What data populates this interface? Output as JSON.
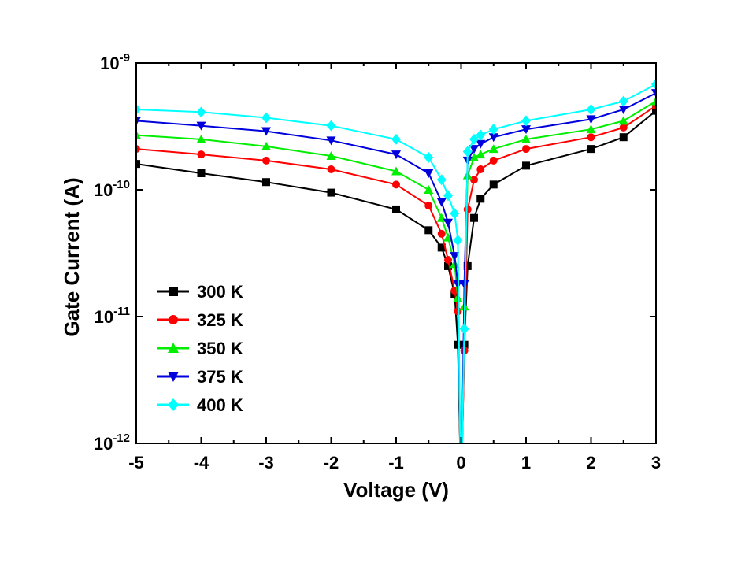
{
  "chart_data": {
    "type": "line",
    "xlabel": "Voltage (V)",
    "ylabel": "Gate Current (A)",
    "xlim": [
      -5,
      3
    ],
    "ylim": [
      1e-12,
      1e-09
    ],
    "yscale": "log",
    "x_ticks": [
      "-5",
      "-4",
      "-3",
      "-2",
      "-1",
      "0",
      "1",
      "2",
      "3"
    ],
    "y_ticks": [
      {
        "base": "10",
        "exp": "-12"
      },
      {
        "base": "10",
        "exp": "-11"
      },
      {
        "base": "10",
        "exp": "-10"
      },
      {
        "base": "10",
        "exp": "-9"
      }
    ],
    "legend_position": "lower-left",
    "series": [
      {
        "name": "300 K",
        "color": "#000000",
        "marker": "square",
        "x": [
          -5,
          -4,
          -3,
          -2,
          -1,
          -0.5,
          -0.3,
          -0.2,
          -0.1,
          -0.05,
          0.05,
          0.1,
          0.2,
          0.3,
          0.5,
          1,
          2,
          2.5,
          3
        ],
        "y": [
          1.6e-10,
          1.35e-10,
          1.15e-10,
          9.5e-11,
          7e-11,
          4.8e-11,
          3.5e-11,
          2.5e-11,
          1.5e-11,
          6e-12,
          6e-12,
          2.5e-11,
          6e-11,
          8.5e-11,
          1.1e-10,
          1.55e-10,
          2.1e-10,
          2.6e-10,
          4.2e-10
        ]
      },
      {
        "name": "325 K",
        "color": "#ff0000",
        "marker": "circle",
        "x": [
          -5,
          -4,
          -3,
          -2,
          -1,
          -0.5,
          -0.3,
          -0.2,
          -0.1,
          -0.05,
          0.05,
          0.1,
          0.2,
          0.3,
          0.5,
          1,
          2,
          2.5,
          3
        ],
        "y": [
          2.1e-10,
          1.9e-10,
          1.7e-10,
          1.45e-10,
          1.1e-10,
          7.5e-11,
          4.5e-11,
          2.8e-11,
          1.6e-11,
          1.1e-11,
          5.4e-12,
          7e-11,
          1.2e-10,
          1.45e-10,
          1.7e-10,
          2.1e-10,
          2.6e-10,
          3.1e-10,
          4.6e-10
        ]
      },
      {
        "name": "350 K",
        "color": "#00ee00",
        "marker": "triangle-up",
        "x": [
          -5,
          -4,
          -3,
          -2,
          -1,
          -0.5,
          -0.3,
          -0.2,
          -0.1,
          -0.05,
          0.05,
          0.1,
          0.2,
          0.3,
          0.5,
          1,
          2,
          2.5,
          3
        ],
        "y": [
          2.7e-10,
          2.5e-10,
          2.2e-10,
          1.85e-10,
          1.4e-10,
          1e-10,
          6e-11,
          4.2e-11,
          2.6e-11,
          1.4e-11,
          1.2e-11,
          1.3e-10,
          1.8e-10,
          1.9e-10,
          2.1e-10,
          2.5e-10,
          3e-10,
          3.5e-10,
          5e-10
        ]
      },
      {
        "name": "375 K",
        "color": "#0000dd",
        "marker": "triangle-down",
        "x": [
          -5,
          -4,
          -3,
          -2,
          -1,
          -0.5,
          -0.3,
          -0.2,
          -0.1,
          -0.05,
          0.05,
          0.1,
          0.2,
          0.3,
          0.5,
          1,
          2,
          2.5,
          3
        ],
        "y": [
          3.5e-10,
          3.2e-10,
          2.9e-10,
          2.45e-10,
          1.9e-10,
          1.35e-10,
          8e-11,
          5.5e-11,
          3e-11,
          1.8e-11,
          1.8e-11,
          1.7e-10,
          2.1e-10,
          2.3e-10,
          2.6e-10,
          3e-10,
          3.6e-10,
          4.3e-10,
          5.8e-10
        ]
      },
      {
        "name": "400 K",
        "color": "#00ffff",
        "marker": "diamond",
        "x": [
          -5,
          -4,
          -3,
          -2,
          -1,
          -0.5,
          -0.3,
          -0.2,
          -0.1,
          -0.05,
          0.05,
          0.1,
          0.2,
          0.3,
          0.5,
          1,
          2,
          2.5,
          3
        ],
        "y": [
          4.3e-10,
          4.1e-10,
          3.7e-10,
          3.2e-10,
          2.5e-10,
          1.8e-10,
          1.2e-10,
          9e-11,
          6.5e-11,
          4e-11,
          8e-12,
          2e-10,
          2.5e-10,
          2.7e-10,
          3e-10,
          3.5e-10,
          4.3e-10,
          5e-10,
          6.8e-10
        ]
      }
    ]
  }
}
